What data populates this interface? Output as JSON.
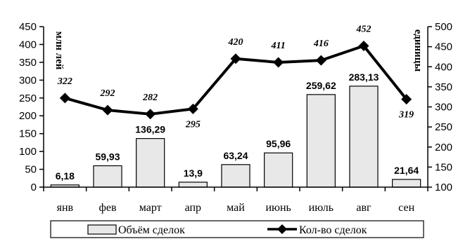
{
  "chart_data": {
    "type": "bar+line",
    "categories": [
      "янв",
      "фев",
      "март",
      "апр",
      "май",
      "июнь",
      "июль",
      "авг",
      "сен"
    ],
    "left_axis": {
      "label": "млн лей",
      "min": 0,
      "max": 450,
      "step": 50
    },
    "right_axis": {
      "label": "единицы",
      "min": 100,
      "max": 500,
      "step": 50
    },
    "series": [
      {
        "name": "Объём сделок",
        "kind": "bar",
        "axis": "left",
        "color": "#e8e8e8",
        "values": [
          6.18,
          59.93,
          136.29,
          13.9,
          63.24,
          95.96,
          259.62,
          283.13,
          21.64
        ],
        "labels": [
          "6,18",
          "59,93",
          "136,29",
          "13,9",
          "63,24",
          "95,96",
          "259,62",
          "283,13",
          "21,64"
        ]
      },
      {
        "name": "Кол-во сделок",
        "kind": "line",
        "axis": "right",
        "color": "#000000",
        "marker": "diamond",
        "values": [
          322,
          292,
          282,
          295,
          420,
          411,
          416,
          452,
          319
        ],
        "labels": [
          "322",
          "292",
          "282",
          "295",
          "420",
          "411",
          "416",
          "452",
          "319"
        ]
      }
    ],
    "legend_position": "bottom",
    "grid": false
  }
}
